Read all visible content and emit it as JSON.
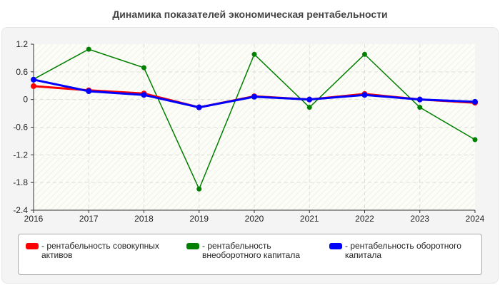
{
  "chart_data": {
    "type": "line",
    "title": "Динамика показателей экономическая рентабельности",
    "x": [
      "2016",
      "2017",
      "2018",
      "2019",
      "2020",
      "2021",
      "2022",
      "2023",
      "2024"
    ],
    "yticks": [
      "1.2",
      "0.6",
      "0",
      "-0.6",
      "-1.2",
      "-1.8",
      "-2.4"
    ],
    "ylim": [
      -2.4,
      1.2
    ],
    "grid": true,
    "legend_position": "bottom",
    "series": [
      {
        "name": "- рентабельность совокупных активов",
        "color": "#ff0000",
        "values": [
          0.29,
          0.2,
          0.13,
          -0.17,
          0.07,
          0,
          0.12,
          0,
          -0.07
        ]
      },
      {
        "name": "- рентабельность внеоборотного капитала",
        "color": "#008000",
        "values": [
          0.44,
          1.09,
          0.69,
          -1.94,
          0.98,
          -0.17,
          0.98,
          -0.17,
          -0.87
        ]
      },
      {
        "name": "- рентабельность оборотного капитала",
        "color": "#0000ff",
        "values": [
          0.43,
          0.18,
          0.1,
          -0.17,
          0.06,
          0,
          0.1,
          0,
          -0.05
        ]
      }
    ]
  }
}
